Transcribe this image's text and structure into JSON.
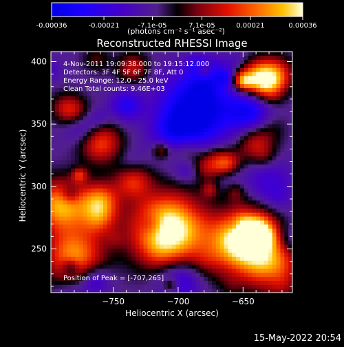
{
  "chart_data": {
    "type": "heatmap",
    "title": "Reconstructed RHESSI Image",
    "xlabel": "Heliocentric X (arcsec)",
    "ylabel": "Heliocentric Y (arcsec)",
    "xlim": [
      -798,
      -612
    ],
    "ylim": [
      215,
      408
    ],
    "x_ticks": [
      -750,
      -700,
      -650
    ],
    "y_ticks": [
      250,
      300,
      350,
      400
    ],
    "colorbar": {
      "ticks": [
        "-0.00036",
        "-0.00021",
        "-7.1e-05",
        "7.1e-05",
        "0.00021",
        "0.00036"
      ],
      "tick_values": [
        -0.00036,
        -0.00021,
        -7.1e-05,
        7.1e-05,
        0.00021,
        0.00036
      ],
      "range": [
        -0.00036,
        0.00036
      ],
      "units": "(photons cm⁻² s⁻¹ asec⁻²)"
    },
    "annotations": [
      " 4-Nov-2011 19:09:38.000 to 19:15:12.000",
      "Detectors: 3F 4F 5F 6F 7F 8F, Att 0",
      "Energy Range: 12.0 - 25.0 keV",
      "Clean    Total counts: 9.46E+03"
    ],
    "peak_label": "Position of Peak = [-707,265]",
    "peak": [
      -707,
      265
    ],
    "colors": {
      "background": "#000000",
      "axes": "#ffffff",
      "text": "#ffffff"
    }
  },
  "footer": {
    "timestamp": "15-May-2022 20:54"
  }
}
